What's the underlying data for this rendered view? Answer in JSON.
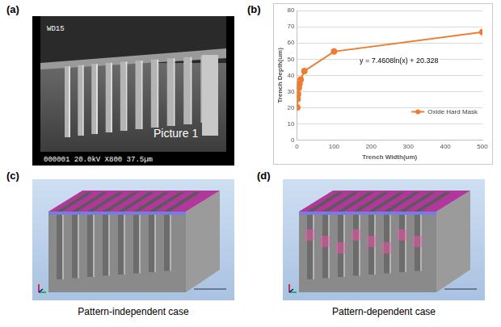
{
  "panels": {
    "a": {
      "letter": "(a)",
      "label_top": "WD15",
      "label_center": "Picture 1",
      "info_bar": "000001 20.0kV X800 37.5µm"
    },
    "b": {
      "letter": "(b)"
    },
    "c": {
      "letter": "(c)",
      "caption": "Pattern-independent case"
    },
    "d": {
      "letter": "(d)",
      "caption": "Pattern-dependent case"
    }
  },
  "chart_data": {
    "type": "line",
    "x_label": "Trench Width(um)",
    "y_label": "Trench Depth(um)",
    "annotation": "y = 7.4608ln(x) + 20.328",
    "x": [
      1,
      2,
      3,
      5,
      7,
      10,
      20,
      100,
      500
    ],
    "series": [
      {
        "name": "Oxide Hard Mask",
        "color": "#ed7d31",
        "marker": "circle",
        "values": [
          20.3,
          25.5,
          28.5,
          32.3,
          34.8,
          37.5,
          42.7,
          54.7,
          66.7
        ]
      }
    ],
    "xlim": [
      0,
      500
    ],
    "xticks": [
      0,
      100,
      200,
      300,
      400,
      500
    ],
    "ylim": [
      0,
      80
    ],
    "yticks": [
      0,
      10,
      20,
      30,
      40,
      50,
      60,
      70,
      80
    ],
    "grid": "y",
    "legend": "right"
  }
}
